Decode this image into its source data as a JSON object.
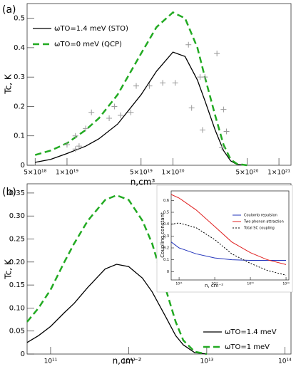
{
  "chart_data": [
    {
      "type": "line",
      "panel_label": "(a)",
      "y_label": "Tc, K",
      "x_label": "n,cm³",
      "xscale": "log",
      "xlim": [
        4.2e+18,
        1.3e+21
      ],
      "ylim": [
        0,
        0.55
      ],
      "xticks": [
        {
          "value": 5e+18,
          "label": "5×10¹⁸"
        },
        {
          "value": 1e+19,
          "label": "1×10¹⁹"
        },
        {
          "value": 5e+19,
          "label": "5×10¹⁹"
        },
        {
          "value": 1e+20,
          "label": "1×10²⁰"
        },
        {
          "value": 5e+20,
          "label": "5×10²⁰"
        },
        {
          "value": 1e+21,
          "label": "1×10²¹"
        }
      ],
      "yticks": [
        0,
        0.1,
        0.2,
        0.3,
        0.4,
        0.5
      ],
      "legend": "upper left",
      "x": [
        5e+18,
        7e+18,
        1e+19,
        1.5e+19,
        2e+19,
        3e+19,
        5e+19,
        7e+19,
        1e+20,
        1.3e+20,
        1.7e+20,
        2e+20,
        2.5e+20,
        3e+20,
        3.5e+20,
        4e+20,
        5e+20
      ],
      "series": [
        {
          "name": "ωTO=1.4 meV (STO)",
          "color": "#000000",
          "line_style": "solid",
          "values": [
            0.01,
            0.02,
            0.04,
            0.065,
            0.09,
            0.14,
            0.24,
            0.32,
            0.385,
            0.37,
            0.29,
            0.22,
            0.12,
            0.05,
            0.015,
            0.003,
            0
          ]
        },
        {
          "name": "ωTO=0 meV (QCP)",
          "color": "#22aa22",
          "line_style": "dashed",
          "values": [
            0.035,
            0.05,
            0.075,
            0.12,
            0.16,
            0.24,
            0.38,
            0.47,
            0.52,
            0.5,
            0.4,
            0.3,
            0.17,
            0.07,
            0.02,
            0.005,
            0
          ]
        }
      ],
      "points": {
        "color": "#999999",
        "x": [
          1e+19,
          1.2e+19,
          1.3e+19,
          1.2e+19,
          1.5e+19,
          1.7e+19,
          2.5e+19,
          2.8e+19,
          3.2e+19,
          4e+19,
          4.5e+19,
          6e+19,
          8e+19,
          1.05e+20,
          1.4e+20,
          1.5e+20,
          1.8e+20,
          1.9e+20,
          2e+20,
          2.6e+20,
          3e+20,
          3.2e+20,
          2.9e+20
        ],
        "values": [
          0.07,
          0.055,
          0.065,
          0.1,
          0.125,
          0.18,
          0.16,
          0.2,
          0.17,
          0.18,
          0.27,
          0.27,
          0.28,
          0.28,
          0.41,
          0.195,
          0.3,
          0.12,
          0.3,
          0.38,
          0.19,
          0.115,
          0.06
        ]
      }
    },
    {
      "type": "line",
      "panel_label": "(b)",
      "y_label": "Tc, K",
      "x_label": "n,cm⁻²",
      "xscale": "log",
      "xlim": [
        50000000000.0,
        120000000000000.0
      ],
      "ylim": [
        0,
        0.37
      ],
      "xticks": [
        {
          "value": 100000000000.0,
          "label": "10¹¹"
        },
        {
          "value": 1000000000000.0,
          "label": "10¹²"
        },
        {
          "value": 10000000000000.0,
          "label": "10¹³"
        },
        {
          "value": 100000000000000.0,
          "label": "10¹⁴"
        }
      ],
      "yticks": [
        0,
        0.05,
        {
          "value": 0.1,
          "label": "0.10"
        },
        0.15,
        {
          "value": 0.2,
          "label": "0.20"
        },
        0.25,
        {
          "value": 0.3,
          "label": "0.30"
        },
        0.35
      ],
      "legend": "lower right",
      "x": [
        50000000000.0,
        70000000000.0,
        100000000000.0,
        150000000000.0,
        200000000000.0,
        300000000000.0,
        500000000000.0,
        700000000000.0,
        1000000000000.0,
        1500000000000.0,
        2000000000000.0,
        3000000000000.0,
        4000000000000.0,
        5000000000000.0,
        7000000000000.0,
        10000000000000.0
      ],
      "series": [
        {
          "name": "ωTO=1.4 meV",
          "color": "#000000",
          "line_style": "solid",
          "values": [
            0.025,
            0.04,
            0.06,
            0.09,
            0.11,
            0.145,
            0.185,
            0.195,
            0.19,
            0.165,
            0.135,
            0.08,
            0.04,
            0.02,
            0.003,
            0
          ]
        },
        {
          "name": "ωTO=1 meV",
          "color": "#22aa22",
          "line_style": "dashed",
          "values": [
            0.07,
            0.1,
            0.14,
            0.2,
            0.24,
            0.29,
            0.335,
            0.345,
            0.335,
            0.29,
            0.24,
            0.14,
            0.07,
            0.03,
            0.005,
            0
          ]
        }
      ]
    },
    {
      "type": "line",
      "y_label": "Coupling constant",
      "x_label": "n, cm⁻²",
      "xscale": "log",
      "xlim": [
        60000000000.0,
        120000000000000.0
      ],
      "ylim": [
        -0.07,
        0.68
      ],
      "xticks": [
        {
          "value": 100000000000.0,
          "label": "10¹¹"
        },
        {
          "value": 1000000000000.0,
          "label": "10¹²"
        },
        {
          "value": 10000000000000.0,
          "label": "10¹³"
        },
        {
          "value": 100000000000000.0,
          "label": "10¹⁴"
        }
      ],
      "yticks": [
        0,
        0.1,
        0.2,
        0.3,
        0.4,
        0.5,
        0.6
      ],
      "legend": "upper right",
      "x": [
        60000000000.0,
        100000000000.0,
        300000000000.0,
        1000000000000.0,
        3000000000000.0,
        10000000000000.0,
        30000000000000.0,
        100000000000000.0
      ],
      "series": [
        {
          "name": "Coulomb repulsion",
          "color": "#2233bb",
          "line_style": "solid",
          "values": [
            0.25,
            0.2,
            0.15,
            0.115,
            0.1,
            0.095,
            0.095,
            0.095
          ]
        },
        {
          "name": "Two phonon attraction",
          "color": "#e02020",
          "line_style": "solid",
          "values": [
            0.65,
            0.62,
            0.52,
            0.38,
            0.25,
            0.16,
            0.1,
            0.06
          ]
        },
        {
          "name": "Total SC coupling",
          "color": "#000000",
          "line_style": "dotted",
          "values": [
            0.4,
            0.41,
            0.37,
            0.27,
            0.15,
            0.07,
            0.01,
            -0.03
          ]
        }
      ]
    }
  ]
}
